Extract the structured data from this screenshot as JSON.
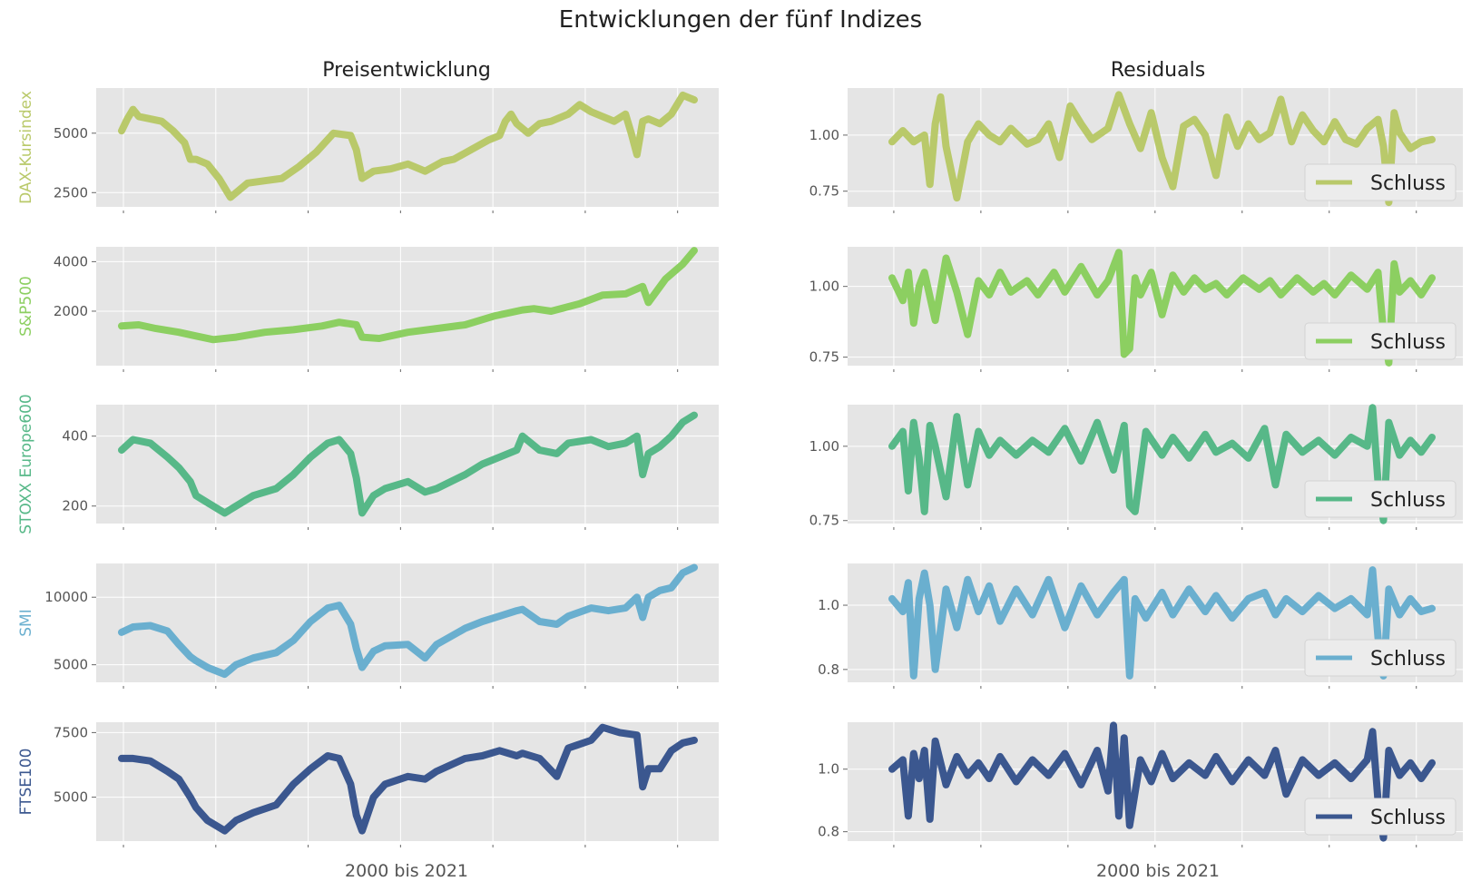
{
  "suptitle": "Entwicklungen der fünf Indizes",
  "columns": {
    "left_title": "Preisentwicklung",
    "right_title": "Residuals",
    "left_xlabel": "2000 bis 2021",
    "right_xlabel": "2000 bis 2021"
  },
  "legend_label": "Schluss",
  "chart_data": [
    {
      "type": "line",
      "panel": "price",
      "series_name": "DAX-Kursindex",
      "color": "#b9c96a",
      "ylim": [
        1900,
        6900
      ],
      "yticks": [
        2500,
        5000
      ],
      "x": [
        0.0,
        0.01,
        0.02,
        0.03,
        0.05,
        0.07,
        0.09,
        0.11,
        0.12,
        0.13,
        0.15,
        0.17,
        0.18,
        0.19,
        0.2,
        0.22,
        0.25,
        0.28,
        0.31,
        0.34,
        0.37,
        0.4,
        0.41,
        0.42,
        0.44,
        0.47,
        0.5,
        0.53,
        0.56,
        0.58,
        0.61,
        0.64,
        0.66,
        0.67,
        0.68,
        0.69,
        0.71,
        0.72,
        0.73,
        0.75,
        0.78,
        0.8,
        0.82,
        0.84,
        0.86,
        0.88,
        0.89,
        0.9,
        0.91,
        0.92,
        0.94,
        0.96,
        0.98,
        1.0
      ],
      "values": [
        5100,
        5600,
        6000,
        5700,
        5600,
        5500,
        5100,
        4600,
        3900,
        3900,
        3700,
        3100,
        2700,
        2300,
        2500,
        2900,
        3000,
        3100,
        3600,
        4200,
        5000,
        4900,
        4300,
        3100,
        3400,
        3500,
        3700,
        3400,
        3800,
        3900,
        4300,
        4700,
        4900,
        5500,
        5800,
        5400,
        5000,
        5200,
        5400,
        5500,
        5800,
        6200,
        5900,
        5700,
        5500,
        5800,
        5000,
        4100,
        5500,
        5600,
        5400,
        5800,
        6600,
        6400
      ]
    },
    {
      "type": "line",
      "panel": "price",
      "series_name": "S&P500",
      "color": "#8ccf61",
      "ylim": [
        -200,
        4600
      ],
      "yticks": [
        2000,
        4000
      ],
      "x": [
        0.0,
        0.03,
        0.06,
        0.1,
        0.13,
        0.16,
        0.2,
        0.25,
        0.3,
        0.35,
        0.38,
        0.41,
        0.42,
        0.45,
        0.5,
        0.55,
        0.6,
        0.65,
        0.7,
        0.72,
        0.75,
        0.8,
        0.84,
        0.88,
        0.91,
        0.92,
        0.95,
        0.98,
        1.0
      ],
      "values": [
        1400,
        1450,
        1300,
        1150,
        1000,
        850,
        950,
        1150,
        1250,
        1400,
        1550,
        1450,
        950,
        900,
        1150,
        1300,
        1450,
        1800,
        2050,
        2100,
        2000,
        2300,
        2650,
        2700,
        3000,
        2350,
        3300,
        3900,
        4450
      ]
    },
    {
      "type": "line",
      "panel": "price",
      "series_name": "STOXX Europe600",
      "color": "#57b888",
      "ylim": [
        150,
        490
      ],
      "yticks": [
        200,
        400
      ],
      "x": [
        0.0,
        0.02,
        0.05,
        0.08,
        0.1,
        0.12,
        0.13,
        0.15,
        0.18,
        0.2,
        0.23,
        0.27,
        0.3,
        0.33,
        0.36,
        0.38,
        0.4,
        0.41,
        0.42,
        0.44,
        0.46,
        0.5,
        0.53,
        0.55,
        0.6,
        0.63,
        0.66,
        0.69,
        0.7,
        0.73,
        0.76,
        0.78,
        0.82,
        0.85,
        0.88,
        0.9,
        0.91,
        0.92,
        0.94,
        0.96,
        0.98,
        1.0
      ],
      "values": [
        360,
        390,
        380,
        340,
        310,
        270,
        230,
        210,
        180,
        200,
        230,
        250,
        290,
        340,
        380,
        390,
        350,
        280,
        180,
        230,
        250,
        270,
        240,
        250,
        290,
        320,
        340,
        360,
        400,
        360,
        350,
        380,
        390,
        370,
        380,
        400,
        290,
        350,
        370,
        400,
        440,
        460
      ]
    },
    {
      "type": "line",
      "panel": "price",
      "series_name": "SMI",
      "color": "#6aafcf",
      "ylim": [
        3700,
        12500
      ],
      "yticks": [
        5000,
        10000
      ],
      "x": [
        0.0,
        0.02,
        0.05,
        0.08,
        0.1,
        0.12,
        0.13,
        0.15,
        0.18,
        0.2,
        0.23,
        0.27,
        0.3,
        0.33,
        0.36,
        0.38,
        0.4,
        0.41,
        0.42,
        0.44,
        0.46,
        0.5,
        0.53,
        0.55,
        0.6,
        0.63,
        0.66,
        0.69,
        0.7,
        0.73,
        0.76,
        0.78,
        0.82,
        0.85,
        0.88,
        0.9,
        0.91,
        0.92,
        0.94,
        0.96,
        0.98,
        1.0
      ],
      "values": [
        7400,
        7800,
        7900,
        7500,
        6500,
        5600,
        5300,
        4800,
        4300,
        5000,
        5500,
        5900,
        6800,
        8200,
        9200,
        9400,
        8000,
        6200,
        4800,
        6000,
        6400,
        6500,
        5500,
        6500,
        7700,
        8200,
        8600,
        9000,
        9100,
        8200,
        8000,
        8600,
        9200,
        9000,
        9200,
        10000,
        8500,
        10000,
        10500,
        10700,
        11800,
        12200
      ]
    },
    {
      "type": "line",
      "panel": "price",
      "series_name": "FTSE100",
      "color": "#3b578f",
      "ylim": [
        3300,
        7900
      ],
      "yticks": [
        5000,
        7500
      ],
      "x": [
        0.0,
        0.02,
        0.05,
        0.08,
        0.1,
        0.12,
        0.13,
        0.15,
        0.18,
        0.2,
        0.23,
        0.27,
        0.3,
        0.33,
        0.36,
        0.38,
        0.4,
        0.41,
        0.42,
        0.44,
        0.46,
        0.5,
        0.53,
        0.55,
        0.6,
        0.63,
        0.66,
        0.69,
        0.7,
        0.73,
        0.76,
        0.78,
        0.82,
        0.84,
        0.87,
        0.9,
        0.91,
        0.92,
        0.94,
        0.96,
        0.98,
        1.0
      ],
      "values": [
        6500,
        6500,
        6400,
        6000,
        5700,
        5000,
        4600,
        4100,
        3700,
        4100,
        4400,
        4700,
        5500,
        6100,
        6600,
        6500,
        5500,
        4300,
        3700,
        5000,
        5500,
        5800,
        5700,
        6000,
        6500,
        6600,
        6800,
        6600,
        6700,
        6500,
        5800,
        6900,
        7200,
        7700,
        7500,
        7400,
        5400,
        6100,
        6100,
        6800,
        7100,
        7200
      ]
    },
    {
      "type": "line",
      "panel": "residual",
      "series_name": "DAX-Kursindex",
      "color": "#b9c96a",
      "ylim": [
        0.68,
        1.21
      ],
      "yticks": [
        0.75,
        1.0
      ],
      "x": [
        0.0,
        0.02,
        0.04,
        0.06,
        0.07,
        0.08,
        0.09,
        0.1,
        0.12,
        0.14,
        0.16,
        0.18,
        0.2,
        0.22,
        0.25,
        0.27,
        0.29,
        0.31,
        0.33,
        0.35,
        0.37,
        0.4,
        0.42,
        0.44,
        0.46,
        0.48,
        0.5,
        0.52,
        0.54,
        0.56,
        0.58,
        0.6,
        0.62,
        0.64,
        0.66,
        0.68,
        0.7,
        0.72,
        0.74,
        0.76,
        0.78,
        0.8,
        0.82,
        0.84,
        0.86,
        0.88,
        0.9,
        0.91,
        0.92,
        0.93,
        0.94,
        0.96,
        0.98,
        1.0
      ],
      "values": [
        0.97,
        1.02,
        0.97,
        1.0,
        0.78,
        1.05,
        1.17,
        0.95,
        0.72,
        0.97,
        1.05,
        1.0,
        0.97,
        1.03,
        0.96,
        0.98,
        1.05,
        0.9,
        1.13,
        1.05,
        0.98,
        1.03,
        1.18,
        1.05,
        0.94,
        1.1,
        0.9,
        0.77,
        1.04,
        1.07,
        1.0,
        0.82,
        1.08,
        0.95,
        1.05,
        0.98,
        1.01,
        1.16,
        0.97,
        1.09,
        1.02,
        0.97,
        1.06,
        0.98,
        0.96,
        1.03,
        1.07,
        0.95,
        0.7,
        1.1,
        1.01,
        0.94,
        0.97,
        0.98
      ]
    },
    {
      "type": "line",
      "panel": "residual",
      "series_name": "S&P500",
      "color": "#8ccf61",
      "ylim": [
        0.72,
        1.14
      ],
      "yticks": [
        0.75,
        1.0
      ],
      "x": [
        0.0,
        0.02,
        0.03,
        0.04,
        0.05,
        0.06,
        0.08,
        0.1,
        0.12,
        0.14,
        0.16,
        0.18,
        0.2,
        0.22,
        0.25,
        0.27,
        0.3,
        0.32,
        0.35,
        0.38,
        0.4,
        0.42,
        0.43,
        0.44,
        0.45,
        0.46,
        0.48,
        0.5,
        0.52,
        0.54,
        0.56,
        0.58,
        0.6,
        0.62,
        0.65,
        0.68,
        0.7,
        0.72,
        0.75,
        0.78,
        0.8,
        0.82,
        0.85,
        0.88,
        0.9,
        0.91,
        0.92,
        0.93,
        0.94,
        0.96,
        0.98,
        1.0
      ],
      "values": [
        1.03,
        0.95,
        1.05,
        0.87,
        1.0,
        1.05,
        0.88,
        1.1,
        0.98,
        0.83,
        1.02,
        0.97,
        1.05,
        0.98,
        1.02,
        0.97,
        1.05,
        0.98,
        1.07,
        0.97,
        1.02,
        1.12,
        0.76,
        0.78,
        1.03,
        0.97,
        1.05,
        0.9,
        1.04,
        0.98,
        1.03,
        0.99,
        1.01,
        0.97,
        1.03,
        0.99,
        1.02,
        0.97,
        1.03,
        0.98,
        1.01,
        0.97,
        1.04,
        0.99,
        1.05,
        0.84,
        0.73,
        1.08,
        0.98,
        1.02,
        0.97,
        1.03
      ]
    },
    {
      "type": "line",
      "panel": "residual",
      "series_name": "STOXX Europe600",
      "color": "#57b888",
      "ylim": [
        0.74,
        1.14
      ],
      "yticks": [
        0.75,
        1.0
      ],
      "x": [
        0.0,
        0.02,
        0.03,
        0.04,
        0.05,
        0.06,
        0.07,
        0.08,
        0.1,
        0.12,
        0.14,
        0.16,
        0.18,
        0.2,
        0.23,
        0.26,
        0.29,
        0.32,
        0.35,
        0.38,
        0.41,
        0.43,
        0.44,
        0.45,
        0.47,
        0.5,
        0.52,
        0.55,
        0.58,
        0.6,
        0.63,
        0.66,
        0.69,
        0.71,
        0.73,
        0.76,
        0.79,
        0.82,
        0.85,
        0.88,
        0.89,
        0.9,
        0.91,
        0.92,
        0.94,
        0.96,
        0.98,
        1.0
      ],
      "values": [
        1.0,
        1.05,
        0.85,
        1.08,
        0.96,
        0.78,
        1.07,
        1.0,
        0.83,
        1.1,
        0.87,
        1.05,
        0.97,
        1.02,
        0.97,
        1.02,
        0.98,
        1.06,
        0.95,
        1.08,
        0.92,
        1.07,
        0.8,
        0.78,
        1.05,
        0.97,
        1.03,
        0.96,
        1.04,
        0.98,
        1.01,
        0.96,
        1.06,
        0.87,
        1.04,
        0.98,
        1.02,
        0.97,
        1.03,
        1.0,
        1.13,
        0.88,
        0.75,
        1.08,
        0.97,
        1.02,
        0.98,
        1.03
      ]
    },
    {
      "type": "line",
      "panel": "residual",
      "series_name": "SMI",
      "color": "#6aafcf",
      "ylim": [
        0.76,
        1.13
      ],
      "yticks": [
        0.8,
        1.0
      ],
      "x": [
        0.0,
        0.02,
        0.03,
        0.04,
        0.05,
        0.06,
        0.07,
        0.08,
        0.1,
        0.12,
        0.14,
        0.16,
        0.18,
        0.2,
        0.23,
        0.26,
        0.29,
        0.32,
        0.35,
        0.38,
        0.41,
        0.43,
        0.44,
        0.45,
        0.47,
        0.5,
        0.52,
        0.55,
        0.58,
        0.6,
        0.63,
        0.66,
        0.69,
        0.71,
        0.73,
        0.76,
        0.79,
        0.82,
        0.85,
        0.88,
        0.89,
        0.9,
        0.91,
        0.92,
        0.94,
        0.96,
        0.98,
        1.0
      ],
      "values": [
        1.02,
        0.98,
        1.07,
        0.78,
        1.02,
        1.1,
        1.0,
        0.8,
        1.05,
        0.93,
        1.08,
        0.98,
        1.06,
        0.95,
        1.05,
        0.97,
        1.08,
        0.93,
        1.06,
        0.97,
        1.04,
        1.08,
        0.78,
        1.02,
        0.96,
        1.04,
        0.97,
        1.05,
        0.98,
        1.03,
        0.96,
        1.02,
        1.04,
        0.97,
        1.02,
        0.98,
        1.03,
        0.99,
        1.02,
        0.97,
        1.11,
        0.9,
        0.78,
        1.05,
        0.97,
        1.02,
        0.98,
        0.99
      ]
    },
    {
      "type": "line",
      "panel": "residual",
      "series_name": "FTSE100",
      "color": "#3b578f",
      "ylim": [
        0.77,
        1.15
      ],
      "yticks": [
        0.8,
        1.0
      ],
      "x": [
        0.0,
        0.02,
        0.03,
        0.04,
        0.05,
        0.06,
        0.07,
        0.08,
        0.1,
        0.12,
        0.14,
        0.16,
        0.18,
        0.2,
        0.23,
        0.26,
        0.29,
        0.32,
        0.35,
        0.38,
        0.4,
        0.41,
        0.42,
        0.43,
        0.44,
        0.46,
        0.48,
        0.5,
        0.52,
        0.55,
        0.58,
        0.6,
        0.63,
        0.66,
        0.69,
        0.71,
        0.73,
        0.76,
        0.79,
        0.82,
        0.85,
        0.88,
        0.89,
        0.9,
        0.91,
        0.92,
        0.94,
        0.96,
        0.98,
        1.0
      ],
      "values": [
        1.0,
        1.03,
        0.85,
        1.05,
        0.97,
        1.06,
        0.84,
        1.09,
        0.95,
        1.04,
        0.98,
        1.02,
        0.97,
        1.04,
        0.96,
        1.03,
        0.98,
        1.05,
        0.95,
        1.06,
        0.93,
        1.14,
        0.85,
        1.1,
        0.82,
        1.03,
        0.96,
        1.05,
        0.97,
        1.02,
        0.98,
        1.04,
        0.96,
        1.03,
        0.98,
        1.06,
        0.92,
        1.03,
        0.98,
        1.02,
        0.97,
        1.03,
        1.12,
        0.9,
        0.78,
        1.06,
        0.98,
        1.02,
        0.97,
        1.02
      ]
    }
  ]
}
